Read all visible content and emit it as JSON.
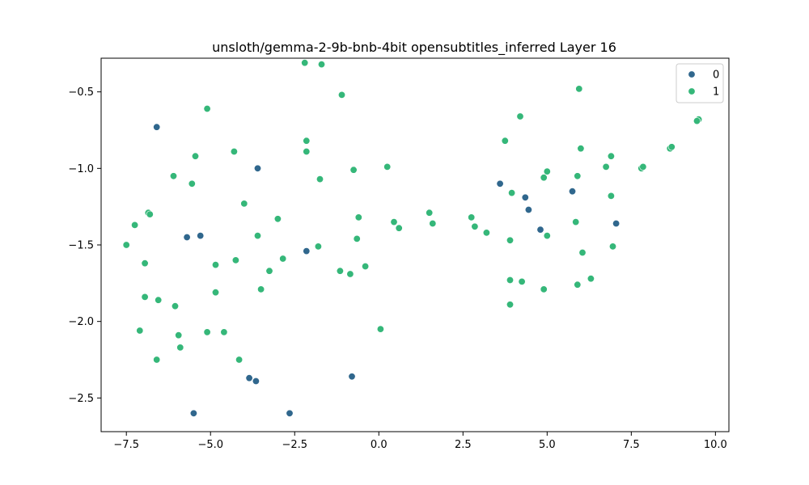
{
  "chart_data": {
    "type": "scatter",
    "title": "unsloth/gemma-2-9b-bnb-4bit opensubtitles_inferred Layer 16",
    "xlabel": "",
    "ylabel": "",
    "xlim": [
      -8.25,
      10.4
    ],
    "ylim": [
      -2.72,
      -0.28
    ],
    "xticks": [
      -7.5,
      -5.0,
      -2.5,
      0.0,
      2.5,
      5.0,
      7.5,
      10.0
    ],
    "xtick_labels": [
      "−7.5",
      "−5.0",
      "−2.5",
      "0.0",
      "2.5",
      "5.0",
      "7.5",
      "10.0"
    ],
    "yticks": [
      -2.5,
      -2.0,
      -1.5,
      -1.0,
      -0.5
    ],
    "ytick_labels": [
      "−2.5",
      "−2.0",
      "−1.5",
      "−1.0",
      "−0.5"
    ],
    "grid": false,
    "legend_position": "top-right",
    "series": [
      {
        "name": "0",
        "color": "#30678d",
        "points": [
          [
            -6.6,
            -0.73
          ],
          [
            -5.7,
            -1.45
          ],
          [
            -5.3,
            -1.44
          ],
          [
            -3.6,
            -1.0
          ],
          [
            -2.15,
            -1.54
          ],
          [
            -3.85,
            -2.37
          ],
          [
            -3.65,
            -2.39
          ],
          [
            -0.8,
            -2.36
          ],
          [
            -5.5,
            -2.6
          ],
          [
            -2.65,
            -2.6
          ],
          [
            3.6,
            -1.1
          ],
          [
            4.35,
            -1.19
          ],
          [
            4.45,
            -1.27
          ],
          [
            4.8,
            -1.4
          ],
          [
            5.75,
            -1.15
          ],
          [
            7.05,
            -1.36
          ]
        ]
      },
      {
        "name": "1",
        "color": "#35b779",
        "points": [
          [
            -2.2,
            -0.31
          ],
          [
            -1.7,
            -0.32
          ],
          [
            -1.1,
            -0.52
          ],
          [
            -5.1,
            -0.61
          ],
          [
            -5.45,
            -0.92
          ],
          [
            -4.3,
            -0.89
          ],
          [
            -2.15,
            -0.82
          ],
          [
            -2.15,
            -0.89
          ],
          [
            -1.75,
            -1.07
          ],
          [
            -0.75,
            -1.01
          ],
          [
            0.25,
            -0.99
          ],
          [
            -6.1,
            -1.05
          ],
          [
            -5.55,
            -1.1
          ],
          [
            -6.85,
            -1.29
          ],
          [
            -6.8,
            -1.3
          ],
          [
            -7.25,
            -1.37
          ],
          [
            -7.5,
            -1.5
          ],
          [
            -4.0,
            -1.23
          ],
          [
            -3.0,
            -1.33
          ],
          [
            -3.6,
            -1.44
          ],
          [
            -4.85,
            -1.63
          ],
          [
            -4.25,
            -1.6
          ],
          [
            -3.25,
            -1.67
          ],
          [
            -2.85,
            -1.59
          ],
          [
            -1.8,
            -1.51
          ],
          [
            -1.15,
            -1.67
          ],
          [
            -0.85,
            -1.69
          ],
          [
            -0.6,
            -1.32
          ],
          [
            -0.65,
            -1.46
          ],
          [
            -0.4,
            -1.64
          ],
          [
            -6.95,
            -1.62
          ],
          [
            -6.95,
            -1.84
          ],
          [
            -6.55,
            -1.86
          ],
          [
            -6.05,
            -1.9
          ],
          [
            -4.85,
            -1.81
          ],
          [
            -3.5,
            -1.79
          ],
          [
            -7.1,
            -2.06
          ],
          [
            -5.95,
            -2.09
          ],
          [
            -5.9,
            -2.17
          ],
          [
            -5.1,
            -2.07
          ],
          [
            -4.6,
            -2.07
          ],
          [
            -4.15,
            -2.25
          ],
          [
            -6.6,
            -2.25
          ],
          [
            0.05,
            -2.05
          ],
          [
            0.45,
            -1.35
          ],
          [
            0.6,
            -1.39
          ],
          [
            1.5,
            -1.29
          ],
          [
            1.6,
            -1.36
          ],
          [
            2.75,
            -1.32
          ],
          [
            2.85,
            -1.38
          ],
          [
            3.2,
            -1.42
          ],
          [
            3.75,
            -0.82
          ],
          [
            4.2,
            -0.66
          ],
          [
            3.95,
            -1.16
          ],
          [
            3.9,
            -1.47
          ],
          [
            3.9,
            -1.73
          ],
          [
            4.25,
            -1.74
          ],
          [
            3.9,
            -1.89
          ],
          [
            4.9,
            -1.79
          ],
          [
            4.9,
            -1.06
          ],
          [
            5.0,
            -1.02
          ],
          [
            5.0,
            -1.44
          ],
          [
            5.95,
            -0.48
          ],
          [
            6.0,
            -0.87
          ],
          [
            5.9,
            -1.05
          ],
          [
            5.85,
            -1.35
          ],
          [
            6.05,
            -1.55
          ],
          [
            6.3,
            -1.72
          ],
          [
            5.9,
            -1.76
          ],
          [
            6.75,
            -0.99
          ],
          [
            6.9,
            -0.92
          ],
          [
            6.9,
            -1.18
          ],
          [
            6.95,
            -1.51
          ],
          [
            7.8,
            -1.0
          ],
          [
            7.85,
            -0.99
          ],
          [
            8.65,
            -0.87
          ],
          [
            8.7,
            -0.86
          ],
          [
            9.5,
            -0.68
          ],
          [
            9.45,
            -0.69
          ]
        ]
      }
    ]
  }
}
